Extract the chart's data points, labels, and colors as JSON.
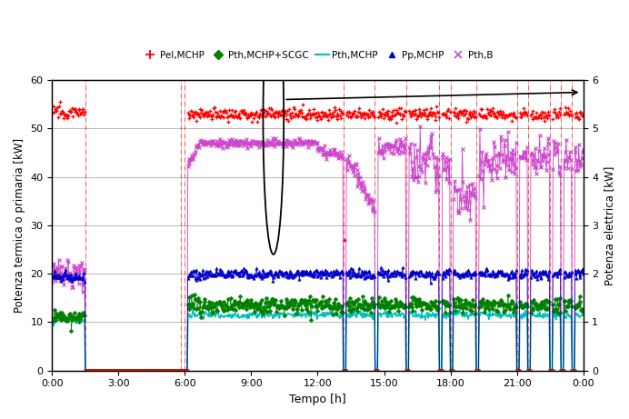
{
  "xlabel": "Tempo [h]",
  "ylabel_left": "Potenza termica o primaria [kW]",
  "ylabel_right": "Potenza elettrica [kW]",
  "ylim_left": [
    0,
    60
  ],
  "ylim_right": [
    0,
    6
  ],
  "yticks_left": [
    0,
    10,
    20,
    30,
    40,
    50,
    60
  ],
  "yticks_right": [
    0,
    1,
    2,
    3,
    4,
    5,
    6
  ],
  "xtick_labels": [
    "0:00",
    "3:00",
    "6:00",
    "9:00",
    "12:00",
    "15:00",
    "18:00",
    "21:00",
    "0:00"
  ],
  "xtick_positions": [
    0,
    180,
    360,
    540,
    720,
    900,
    1080,
    1260,
    1440
  ],
  "total_minutes": 1440,
  "colors": {
    "pel": "#ff0000",
    "pth_scgc": "#008000",
    "pth_mchp": "#00bfbf",
    "pp": "#0000cc",
    "pth_b": "#cc44cc"
  },
  "vline_positions": [
    90,
    350,
    360,
    790,
    875,
    960,
    1050,
    1080,
    1150,
    1260,
    1290,
    1350,
    1380,
    1410
  ],
  "background_color": "#ffffff"
}
